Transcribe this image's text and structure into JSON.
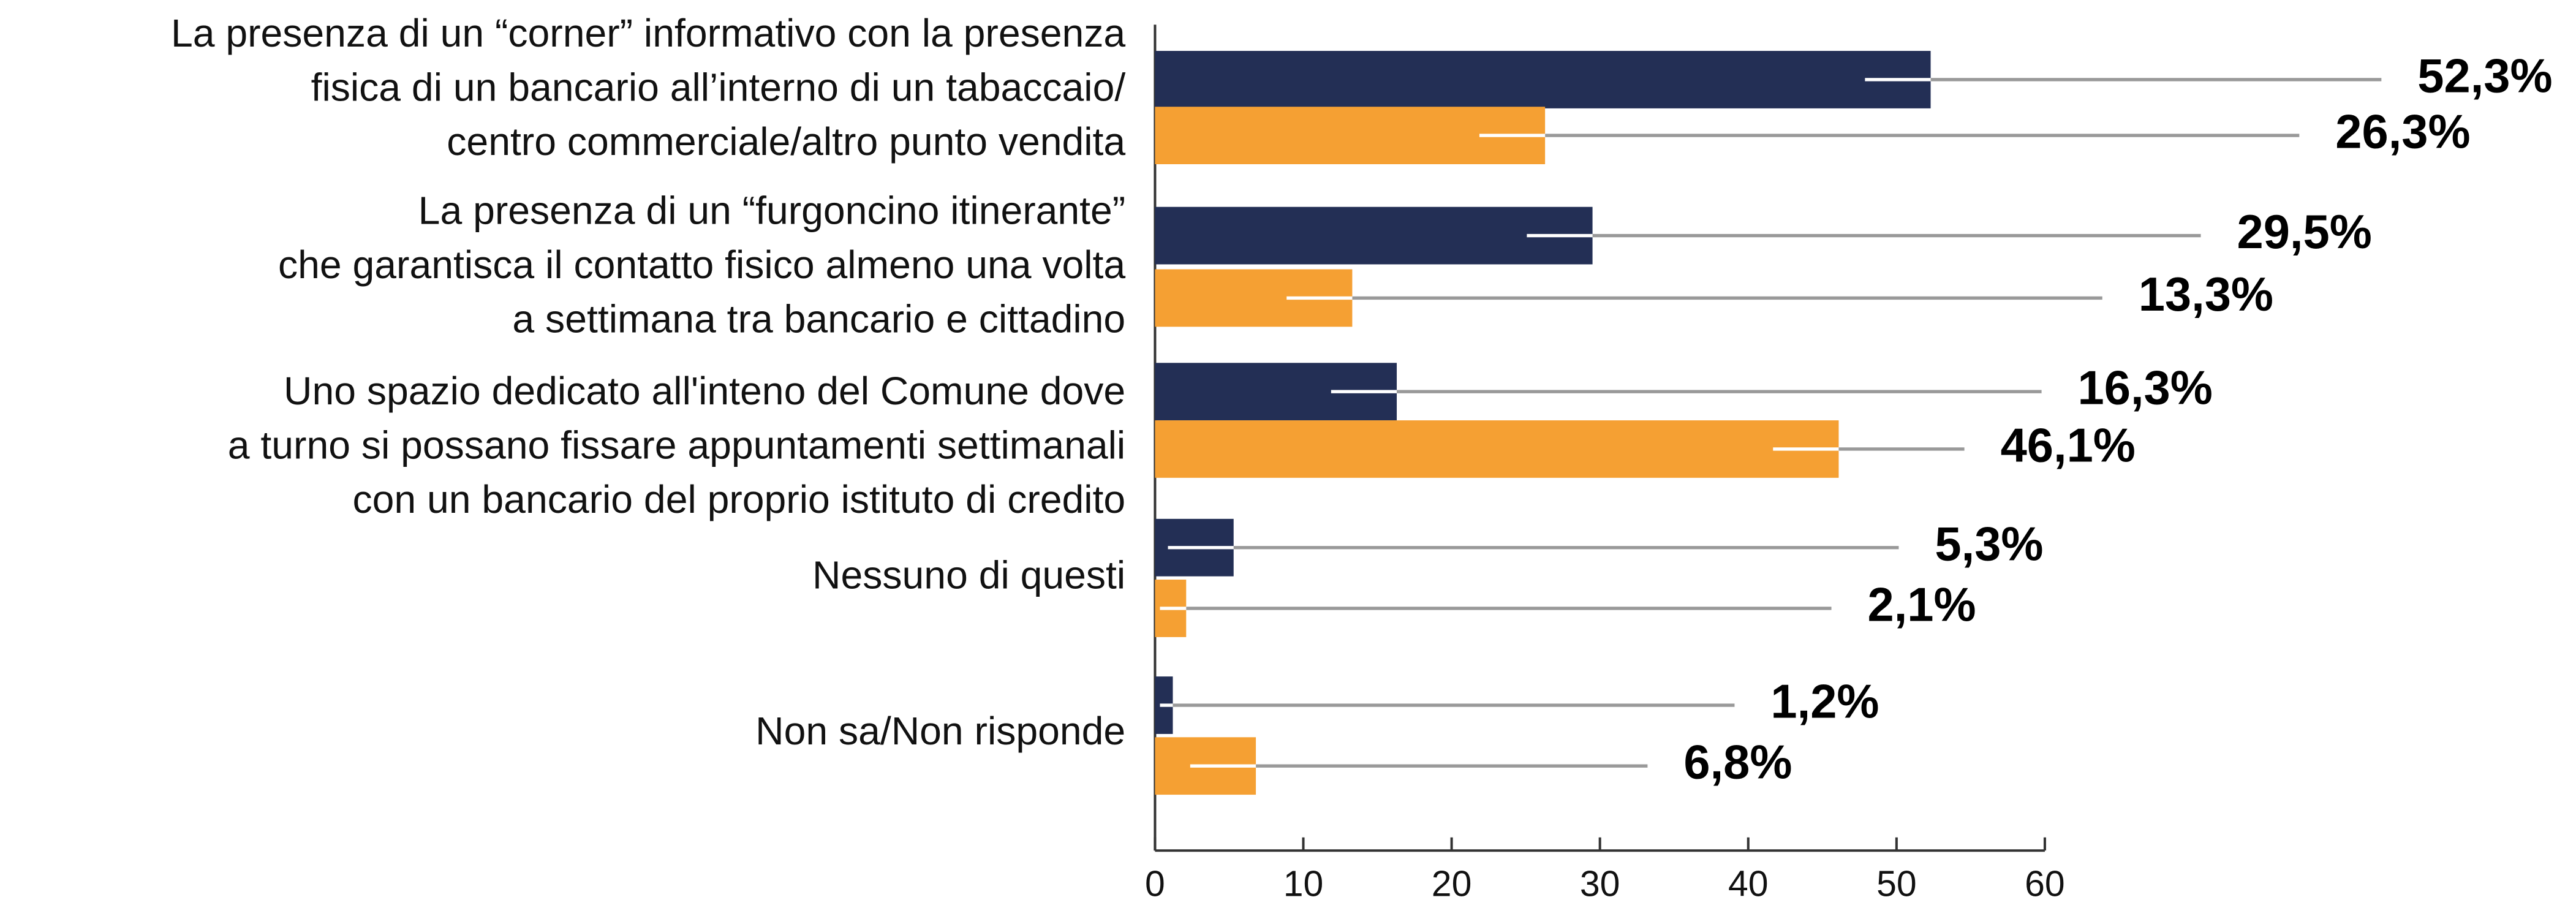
{
  "chart_data": {
    "type": "bar",
    "orientation": "horizontal",
    "categories": [
      [
        "La presenza di un “corner” informativo con la presenza",
        "fisica di un bancario all’interno di un tabaccaio/",
        "centro commerciale/altro punto vendita"
      ],
      [
        "La presenza di un “furgoncino itinerante”",
        "che garantisca il contatto fisico almeno una volta",
        "a settimana tra bancario e cittadino"
      ],
      [
        "Uno spazio dedicato all'inteno del Comune dove",
        "a turno si possano fissare appuntamenti settimanali",
        "con un bancario del proprio istituto di credito"
      ],
      [
        "Nessuno di questi"
      ],
      [
        "Non sa/Non risponde"
      ]
    ],
    "series": [
      {
        "color": "#232f55",
        "values": [
          52.3,
          29.5,
          16.3,
          5.3,
          1.2
        ],
        "value_labels": [
          "52,3%",
          "29,5%",
          "16,3%",
          "5,3%",
          "1,2%"
        ]
      },
      {
        "color": "#f5a033",
        "values": [
          26.3,
          13.3,
          46.1,
          2.1,
          6.8
        ],
        "value_labels": [
          "26,3%",
          "13,3%",
          "46,1%",
          "2,1%",
          "6,8%"
        ]
      }
    ],
    "xlim": [
      0,
      60
    ],
    "xticks": [
      0,
      10,
      20,
      30,
      40,
      50,
      60
    ]
  }
}
